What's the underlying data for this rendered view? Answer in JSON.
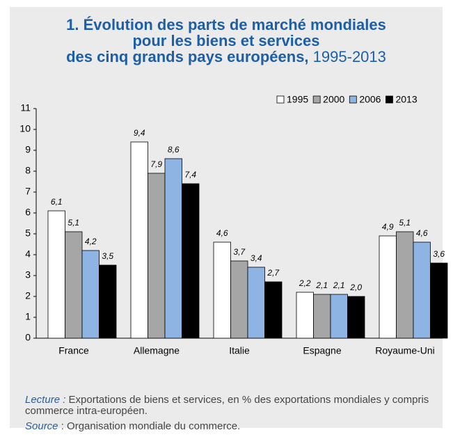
{
  "chart_data": {
    "type": "bar",
    "title": [
      "1. Évolution des parts de marché mondiales",
      "pour les biens et services",
      "des cinq grands pays européens,"
    ],
    "subtitle": "1995-2013",
    "categories": [
      "France",
      "Allemagne",
      "Italie",
      "Espagne",
      "Royaume-Uni"
    ],
    "series": [
      {
        "name": "1995",
        "color": "#ffffff",
        "values": [
          6.1,
          9.4,
          4.6,
          2.2,
          4.9
        ],
        "value_labels": [
          "6,1",
          "9,4",
          "4,6",
          "2,2",
          "4,9"
        ]
      },
      {
        "name": "2000",
        "color": "#a6a6a6",
        "values": [
          5.1,
          7.9,
          3.7,
          2.1,
          5.1
        ],
        "value_labels": [
          "5,1",
          "7,9",
          "3,7",
          "2,1",
          "5,1"
        ]
      },
      {
        "name": "2006",
        "color": "#8eb4e3",
        "values": [
          4.2,
          8.6,
          3.4,
          2.1,
          4.6
        ],
        "value_labels": [
          "4,2",
          "8,6",
          "3,4",
          "2,1",
          "4,6"
        ]
      },
      {
        "name": "2013",
        "color": "#000000",
        "values": [
          3.5,
          7.4,
          2.7,
          2.0,
          3.6
        ],
        "value_labels": [
          "3,5",
          "7,4",
          "2,7",
          "2,0",
          "3,6"
        ]
      }
    ],
    "ylim": [
      0,
      11
    ],
    "yticks": [
      0,
      1,
      2,
      3,
      4,
      5,
      6,
      7,
      8,
      9,
      10,
      11
    ],
    "grid": false,
    "legend": "top-right",
    "notes": [
      {
        "label": "Lecture :",
        "text": " Exportations de biens et services, en % des exportations mondiales y compris commerce intra-européen."
      },
      {
        "label": "Source",
        "text": " : Organisation mondiale du commerce."
      }
    ]
  }
}
